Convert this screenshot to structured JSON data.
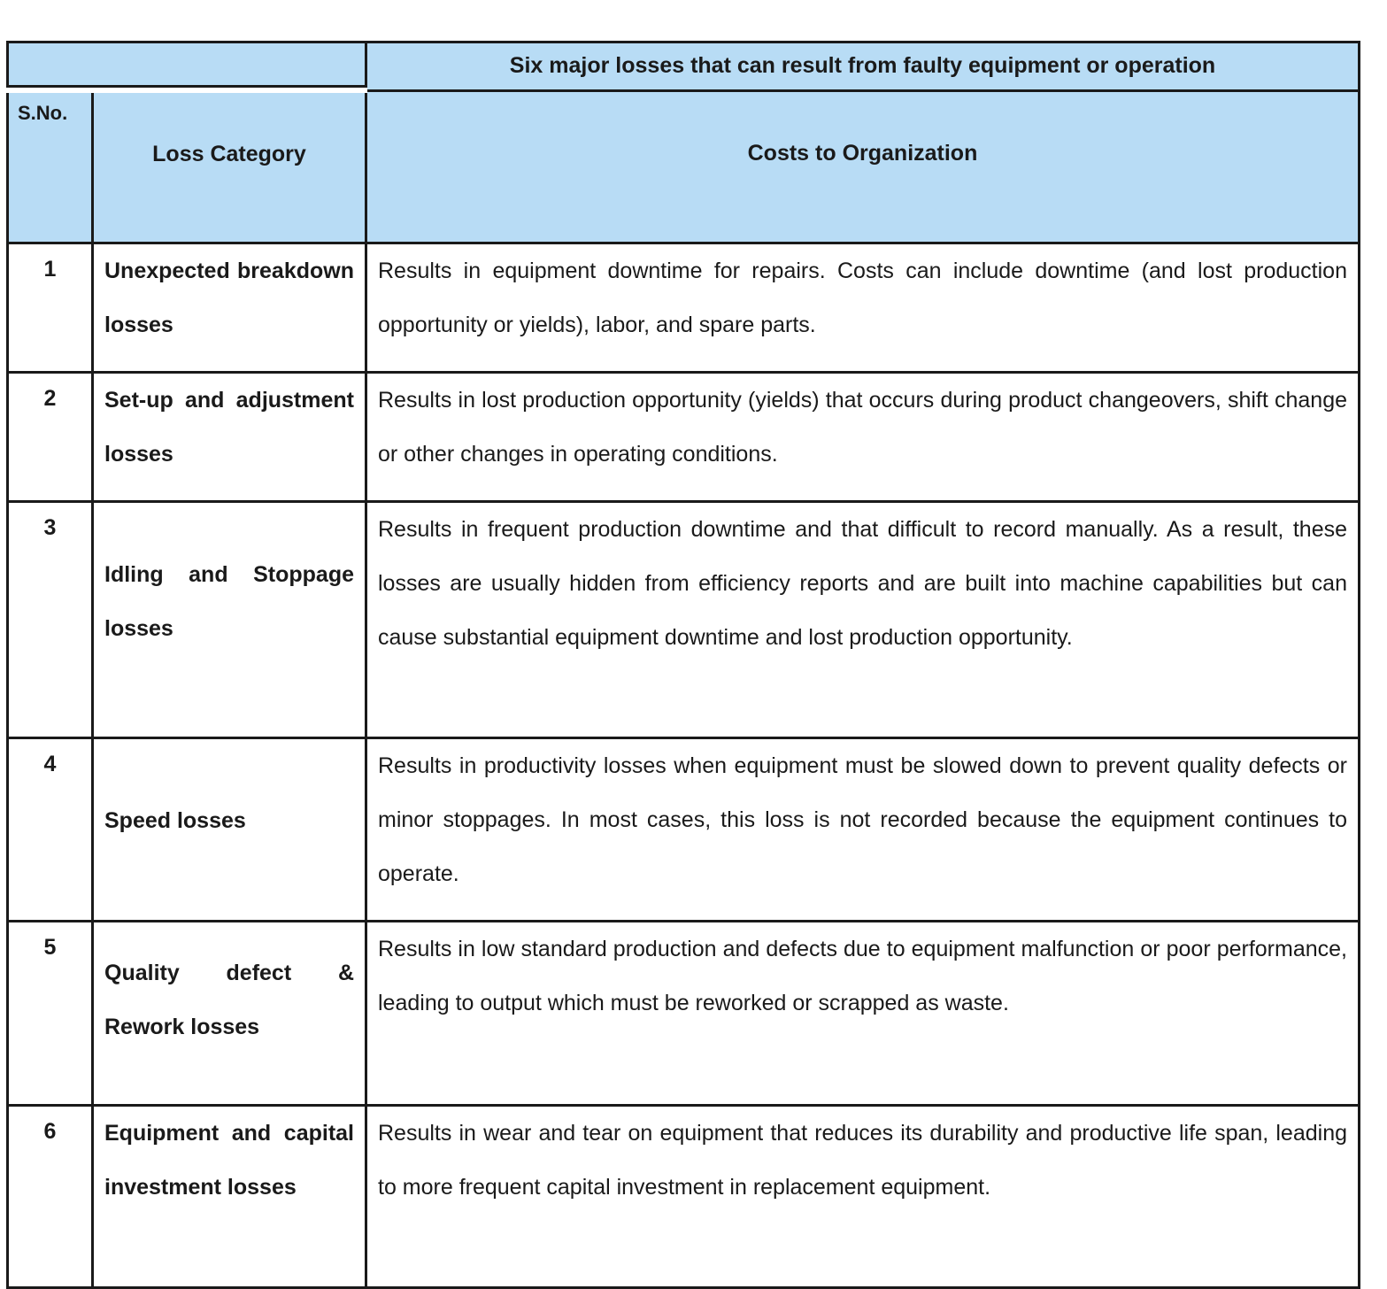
{
  "table": {
    "caption": "Six major losses that can result from faulty equipment or operation",
    "headers": {
      "sno": "S.No.",
      "category": "Loss Category",
      "costs": "Costs to Organization"
    },
    "rows": [
      {
        "sno": "1",
        "category": "Unexpected breakdown losses",
        "costs": "Results in equipment downtime for repairs. Costs can include downtime (and lost production opportunity or yields), labor, and spare parts."
      },
      {
        "sno": "2",
        "category": "Set-up and adjustment losses",
        "costs": "Results in lost production opportunity (yields) that occurs during product changeovers, shift change or other changes in operating conditions."
      },
      {
        "sno": "3",
        "category": "Idling and Stoppage losses",
        "costs": "Results in frequent production downtime and that difficult to record manually. As a result, these losses are usually hidden from efficiency reports and are built into machine capabilities but can cause substantial equipment downtime and lost production opportunity."
      },
      {
        "sno": "4",
        "category": "Speed losses",
        "costs": "Results in productivity losses when equipment must be slowed down to prevent quality defects or minor stoppages. In most cases, this loss is not recorded because the equipment continues to operate."
      },
      {
        "sno": "5",
        "category": "Quality defect & Rework losses",
        "costs": "Results in low standard production and defects due to equipment malfunction or poor performance, leading to output which must be reworked or scrapped as waste."
      },
      {
        "sno": "6",
        "category": "Equipment and capital investment losses",
        "costs": "Results in wear and tear on equipment that reduces its durability and productive life span, leading to more frequent capital investment in replacement equipment."
      }
    ]
  },
  "colors": {
    "header_bg": "#b8dcf5",
    "border": "#1a1a1a"
  }
}
